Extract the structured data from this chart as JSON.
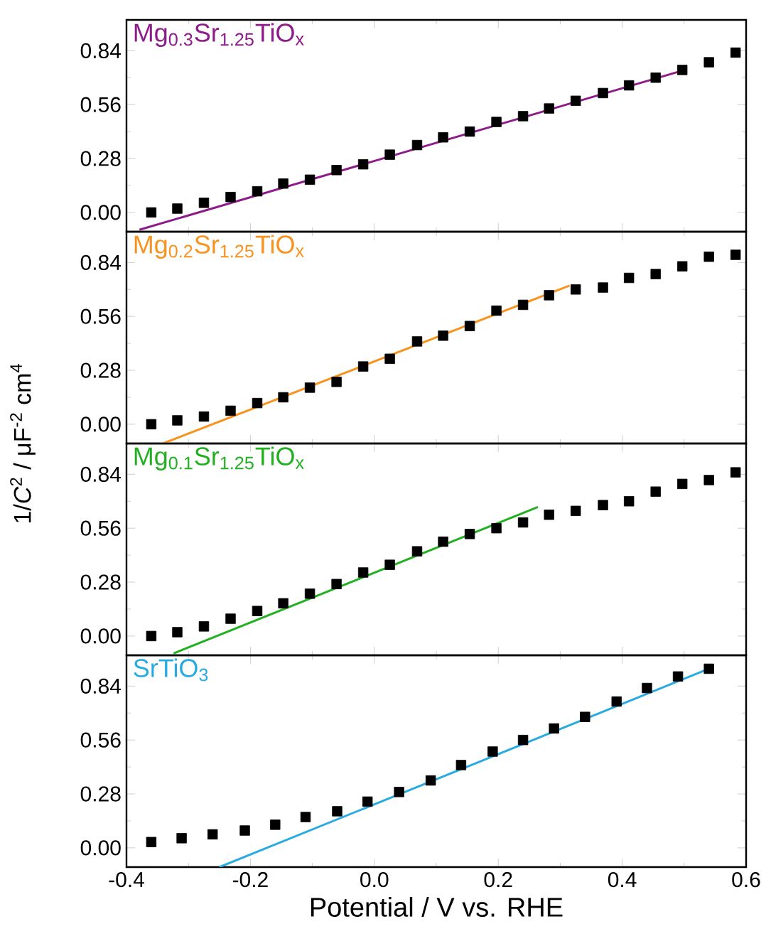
{
  "chart_data": [
    {
      "type": "scatter",
      "ylabel": "1/*C*$^{2}$ / μF$^{-2}$ cm$^{4}$",
      "xlim": [
        -0.4,
        0.6
      ],
      "ylim": [
        -0.1,
        1.0
      ],
      "tick_labels": "y",
      "xticks": [
        {
          "value": -0.4,
          "label": null
        },
        {
          "value": -0.2,
          "label": null
        },
        {
          "value": 0.0,
          "label": null
        },
        {
          "value": 0.2,
          "label": null
        },
        {
          "value": 0.4,
          "label": null
        },
        {
          "value": 0.6,
          "label": null
        }
      ],
      "yticks": [
        {
          "value": 0,
          "label": "0.00"
        },
        {
          "value": 0.28,
          "label": "0.28"
        },
        {
          "value": 0.56,
          "label": "0.56"
        },
        {
          "value": 0.84,
          "label": "0.84"
        }
      ],
      "series": [
        {
          "type": "scatter",
          "marker": "square",
          "color": "#000000",
          "x": [
            -0.36,
            -0.318,
            -0.275,
            -0.232,
            -0.189,
            -0.147,
            -0.104,
            -0.061,
            -0.018,
            0.025,
            0.069,
            0.111,
            0.154,
            0.197,
            0.24,
            0.282,
            0.325,
            0.369,
            0.411,
            0.454,
            0.497,
            0.54,
            0.583
          ],
          "values": [
            0.0,
            0.02,
            0.05,
            0.08,
            0.11,
            0.15,
            0.17,
            0.22,
            0.25,
            0.3,
            0.35,
            0.39,
            0.42,
            0.47,
            0.5,
            0.54,
            0.58,
            0.62,
            0.66,
            0.7,
            0.74,
            0.78,
            0.83
          ]
        },
        {
          "type": "line",
          "name": "Mg$_{0.3}$Sr$_{1.25}$TiO$_{x}$",
          "color": "#8e1b8a",
          "line_style": "solid",
          "x": [
            -0.379,
            0.501
          ],
          "values": [
            -0.09,
            0.74
          ]
        }
      ]
    },
    {
      "type": "scatter",
      "xlim": [
        -0.4,
        0.6
      ],
      "ylim": [
        -0.1,
        1.0
      ],
      "tick_labels": "y",
      "xticks": [
        {
          "value": -0.4,
          "label": null
        },
        {
          "value": -0.2,
          "label": null
        },
        {
          "value": 0.0,
          "label": null
        },
        {
          "value": 0.2,
          "label": null
        },
        {
          "value": 0.4,
          "label": null
        },
        {
          "value": 0.6,
          "label": null
        }
      ],
      "yticks": [
        {
          "value": 0,
          "label": "0.00"
        },
        {
          "value": 0.28,
          "label": "0.28"
        },
        {
          "value": 0.56,
          "label": "0.56"
        },
        {
          "value": 0.84,
          "label": "0.84"
        }
      ],
      "series": [
        {
          "type": "scatter",
          "marker": "square",
          "color": "#000000",
          "x": [
            -0.36,
            -0.318,
            -0.275,
            -0.232,
            -0.189,
            -0.147,
            -0.104,
            -0.061,
            -0.018,
            0.025,
            0.069,
            0.111,
            0.154,
            0.197,
            0.24,
            0.282,
            0.325,
            0.369,
            0.411,
            0.454,
            0.497,
            0.54,
            0.583
          ],
          "values": [
            0.0,
            0.02,
            0.04,
            0.07,
            0.11,
            0.14,
            0.19,
            0.22,
            0.3,
            0.34,
            0.43,
            0.46,
            0.51,
            0.59,
            0.62,
            0.67,
            0.7,
            0.71,
            0.76,
            0.78,
            0.82,
            0.87,
            0.88
          ]
        },
        {
          "type": "line",
          "name": "Mg$_{0.2}$Sr$_{1.25}$TiO$_{x}$",
          "color": "#f7931e",
          "line_style": "solid",
          "x": [
            -0.341,
            0.315
          ],
          "values": [
            -0.1,
            0.72
          ]
        }
      ]
    },
    {
      "type": "scatter",
      "xlim": [
        -0.4,
        0.6
      ],
      "ylim": [
        -0.1,
        1.0
      ],
      "tick_labels": "y",
      "xticks": [
        {
          "value": -0.4,
          "label": null
        },
        {
          "value": -0.2,
          "label": null
        },
        {
          "value": 0.0,
          "label": null
        },
        {
          "value": 0.2,
          "label": null
        },
        {
          "value": 0.4,
          "label": null
        },
        {
          "value": 0.6,
          "label": null
        }
      ],
      "yticks": [
        {
          "value": 0,
          "label": "0.00"
        },
        {
          "value": 0.28,
          "label": "0.28"
        },
        {
          "value": 0.56,
          "label": "0.56"
        },
        {
          "value": 0.84,
          "label": "0.84"
        }
      ],
      "series": [
        {
          "type": "scatter",
          "marker": "square",
          "color": "#000000",
          "x": [
            -0.36,
            -0.318,
            -0.275,
            -0.232,
            -0.189,
            -0.147,
            -0.104,
            -0.061,
            -0.018,
            0.025,
            0.069,
            0.111,
            0.154,
            0.197,
            0.24,
            0.282,
            0.325,
            0.369,
            0.411,
            0.454,
            0.497,
            0.54,
            0.583
          ],
          "values": [
            0.0,
            0.02,
            0.05,
            0.09,
            0.13,
            0.17,
            0.22,
            0.27,
            0.33,
            0.37,
            0.44,
            0.49,
            0.53,
            0.56,
            0.59,
            0.63,
            0.65,
            0.68,
            0.7,
            0.75,
            0.79,
            0.81,
            0.85
          ]
        },
        {
          "type": "line",
          "name": "Mg$_{0.1}$Sr$_{1.25}$TiO$_{x}$",
          "color": "#22b022",
          "line_style": "solid",
          "x": [
            -0.324,
            0.264
          ],
          "values": [
            -0.09,
            0.67
          ]
        }
      ]
    },
    {
      "type": "scatter",
      "xlabel": "Potential / V vs. RHE",
      "xlim": [
        -0.4,
        0.6
      ],
      "ylim": [
        -0.1,
        1.0
      ],
      "xticks": [
        {
          "value": -0.4,
          "label": "-0.4"
        },
        {
          "value": -0.2,
          "label": "-0.2"
        },
        {
          "value": 0.0,
          "label": "0.0"
        },
        {
          "value": 0.2,
          "label": "0.2"
        },
        {
          "value": 0.4,
          "label": "0.4"
        },
        {
          "value": 0.6,
          "label": "0.6"
        }
      ],
      "yticks": [
        {
          "value": 0,
          "label": "0.00"
        },
        {
          "value": 0.28,
          "label": "0.28"
        },
        {
          "value": 0.56,
          "label": "0.56"
        },
        {
          "value": 0.84,
          "label": "0.84"
        }
      ],
      "series": [
        {
          "type": "scatter",
          "marker": "square",
          "color": "#000000",
          "x": [
            -0.36,
            -0.311,
            -0.261,
            -0.209,
            -0.16,
            -0.111,
            -0.06,
            -0.011,
            0.04,
            0.091,
            0.14,
            0.191,
            0.24,
            0.29,
            0.34,
            0.391,
            0.44,
            0.49,
            0.54
          ],
          "values": [
            0.03,
            0.05,
            0.07,
            0.09,
            0.12,
            0.16,
            0.19,
            0.24,
            0.29,
            0.35,
            0.43,
            0.5,
            0.56,
            0.62,
            0.68,
            0.76,
            0.83,
            0.89,
            0.93
          ]
        },
        {
          "type": "line",
          "name": "SrTiO$_{3}$",
          "color": "#29abe2",
          "line_style": "solid",
          "x": [
            -0.25,
            0.54
          ],
          "values": [
            -0.1,
            0.93
          ]
        }
      ]
    }
  ]
}
